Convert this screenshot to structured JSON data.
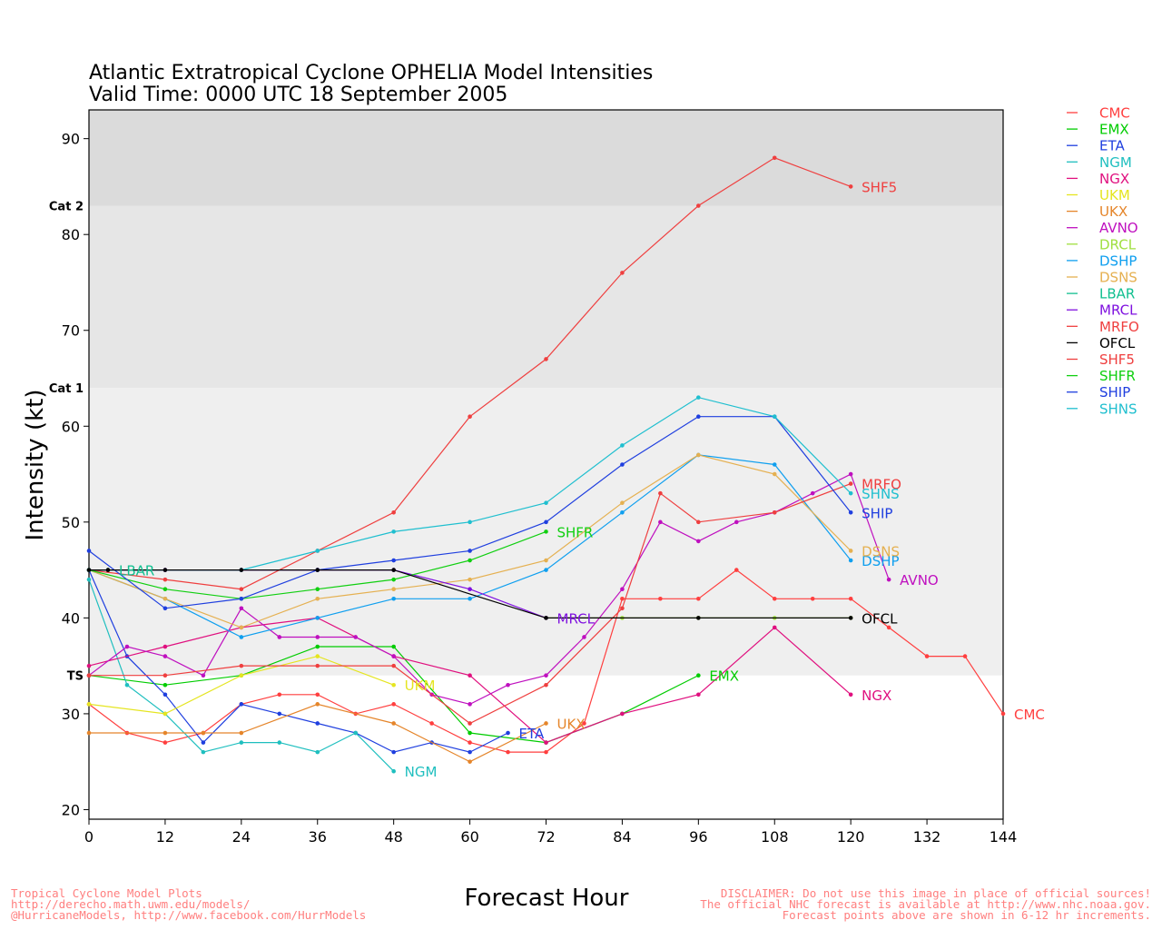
{
  "chart_data": {
    "type": "line",
    "title": "Atlantic Extratropical Cyclone OPHELIA Model Intensities",
    "subtitle": "Valid Time: 0000 UTC 18 September 2005",
    "xlabel": "Forecast Hour",
    "ylabel": "Intensity (kt)",
    "xlim": [
      0,
      144
    ],
    "ylim": [
      19,
      93
    ],
    "xticks": [
      0,
      12,
      24,
      36,
      48,
      60,
      72,
      84,
      96,
      108,
      120,
      132,
      144
    ],
    "yticks": [
      20,
      30,
      40,
      50,
      60,
      70,
      80,
      90
    ],
    "legend_position": "right",
    "bands": [
      {
        "label": "TS",
        "from": 34,
        "to": 64,
        "color": "#efefef"
      },
      {
        "label": "Cat 1",
        "from": 64,
        "to": 83,
        "color": "#e6e6e6"
      },
      {
        "label": "Cat 2",
        "from": 83,
        "to": 93,
        "color": "#dbdbdb"
      }
    ],
    "series": [
      {
        "name": "CMC",
        "color": "#ff3f3f",
        "x": [
          0,
          6,
          12,
          18,
          24,
          30,
          36,
          42,
          48,
          54,
          60,
          66,
          72,
          78,
          84,
          90,
          96,
          102,
          108,
          114,
          120,
          126,
          132,
          138,
          144
        ],
        "y": [
          31,
          28,
          27,
          28,
          31,
          32,
          32,
          30,
          31,
          29,
          27,
          26,
          26,
          29,
          42,
          42,
          42,
          45,
          42,
          42,
          42,
          39,
          36,
          36,
          30
        ],
        "label": "CMC"
      },
      {
        "name": "EMX",
        "color": "#00cc00",
        "x": [
          0,
          12,
          24,
          36,
          48,
          60,
          72,
          84,
          96
        ],
        "y": [
          34,
          33,
          34,
          37,
          37,
          28,
          27,
          30,
          34
        ],
        "label": "EMX"
      },
      {
        "name": "ETA",
        "color": "#1f3fdf",
        "x": [
          0,
          6,
          12,
          18,
          24,
          30,
          36,
          42,
          48,
          54,
          60,
          66
        ],
        "y": [
          45,
          36,
          32,
          27,
          31,
          30,
          29,
          28,
          26,
          27,
          26,
          28
        ],
        "label": "ETA"
      },
      {
        "name": "NGM",
        "color": "#1fbfbf",
        "x": [
          0,
          6,
          12,
          18,
          24,
          30,
          36,
          42,
          48
        ],
        "y": [
          44,
          33,
          30,
          26,
          27,
          27,
          26,
          28,
          24
        ],
        "label": "NGM"
      },
      {
        "name": "NGX",
        "color": "#e0107f",
        "x": [
          0,
          12,
          24,
          36,
          48,
          60,
          72,
          84,
          96,
          108,
          120
        ],
        "y": [
          35,
          37,
          39,
          40,
          36,
          34,
          27,
          30,
          32,
          39,
          32
        ],
        "label": "NGX"
      },
      {
        "name": "UKM",
        "color": "#e5e520",
        "x": [
          0,
          12,
          24,
          36,
          48
        ],
        "y": [
          31,
          30,
          34,
          36,
          33
        ],
        "label": "UKM"
      },
      {
        "name": "UKX",
        "color": "#e5852a",
        "x": [
          0,
          12,
          18,
          24,
          36,
          48,
          60,
          72
        ],
        "y": [
          28,
          28,
          28,
          28,
          31,
          29,
          25,
          29
        ],
        "label": "UKX"
      },
      {
        "name": "AVNO",
        "color": "#bf10bf",
        "x": [
          0,
          6,
          12,
          18,
          24,
          30,
          36,
          42,
          48,
          54,
          60,
          66,
          72,
          78,
          84,
          90,
          96,
          102,
          108,
          114,
          120,
          126
        ],
        "y": [
          34,
          37,
          36,
          34,
          41,
          38,
          38,
          38,
          36,
          32,
          31,
          33,
          34,
          38,
          43,
          50,
          48,
          50,
          51,
          53,
          55,
          44
        ],
        "label": "AVNO"
      },
      {
        "name": "DRCL",
        "color": "#9fdf3f",
        "x": [
          72,
          84,
          96,
          108,
          120
        ],
        "y": [
          40,
          40,
          40,
          40,
          40
        ],
        "label": ""
      },
      {
        "name": "DSHP",
        "color": "#0f9fef",
        "x": [
          0,
          12,
          24,
          36,
          48,
          60,
          72,
          84,
          96,
          108,
          120
        ],
        "y": [
          45,
          42,
          38,
          40,
          42,
          42,
          45,
          51,
          57,
          56,
          46
        ],
        "label": "DSHP"
      },
      {
        "name": "DSNS",
        "color": "#e5b050",
        "x": [
          0,
          12,
          24,
          36,
          48,
          60,
          72,
          84,
          96,
          108,
          120
        ],
        "y": [
          45,
          42,
          39,
          42,
          43,
          44,
          46,
          52,
          57,
          55,
          47
        ],
        "label": "DSNS"
      },
      {
        "name": "LBAR",
        "color": "#10bf8f",
        "x": [
          0,
          3
        ],
        "y": [
          45,
          45
        ],
        "label": "LBAR"
      },
      {
        "name": "MRCL",
        "color": "#7f10df",
        "x": [
          0,
          12,
          24,
          36,
          48,
          60,
          72
        ],
        "y": [
          45,
          45,
          45,
          45,
          45,
          43,
          40
        ],
        "label": "MRCL"
      },
      {
        "name": "MRFO",
        "color": "#ef3f3f",
        "x": [
          0,
          12,
          24,
          36,
          48,
          60,
          72,
          84,
          90,
          96,
          108,
          120
        ],
        "y": [
          34,
          34,
          35,
          35,
          35,
          29,
          33,
          41,
          53,
          50,
          51,
          54
        ],
        "label": "MRFO"
      },
      {
        "name": "OFCL",
        "color": "#000000",
        "x": [
          0,
          3,
          12,
          24,
          36,
          48,
          72,
          96,
          120
        ],
        "y": [
          45,
          45,
          45,
          45,
          45,
          45,
          40,
          40,
          40
        ],
        "label": "OFCL"
      },
      {
        "name": "SHF5",
        "color": "#ef3f3f",
        "x": [
          0,
          12,
          24,
          36,
          48,
          60,
          72,
          84,
          96,
          108,
          120
        ],
        "y": [
          45,
          44,
          43,
          47,
          51,
          61,
          67,
          76,
          83,
          88,
          85
        ],
        "label": "SHF5"
      },
      {
        "name": "SHFR",
        "color": "#10cf10",
        "x": [
          0,
          12,
          24,
          36,
          48,
          60,
          72
        ],
        "y": [
          45,
          43,
          42,
          43,
          44,
          46,
          49
        ],
        "label": "SHFR"
      },
      {
        "name": "SHIP",
        "color": "#1f3fdf",
        "x": [
          0,
          12,
          24,
          36,
          48,
          60,
          72,
          84,
          96,
          108,
          120
        ],
        "y": [
          47,
          41,
          42,
          45,
          46,
          47,
          50,
          56,
          61,
          61,
          51
        ],
        "label": "SHIP"
      },
      {
        "name": "SHNS",
        "color": "#1fbfcf",
        "x": [
          0,
          24,
          36,
          48,
          60,
          72,
          84,
          96,
          108,
          120
        ],
        "y": [
          45,
          45,
          47,
          49,
          50,
          52,
          58,
          63,
          61,
          53
        ],
        "label": "SHNS"
      }
    ]
  },
  "footer": {
    "left": [
      "Tropical Cyclone Model Plots",
      "http://derecho.math.uwm.edu/models/",
      "@HurricaneModels, http://www.facebook.com/HurrModels"
    ],
    "right": [
      "DISCLAIMER: Do not use this image in place of official sources!",
      "The official NHC forecast is available at http://www.nhc.noaa.gov.",
      "Forecast points above are shown in 6-12 hr increments."
    ]
  }
}
